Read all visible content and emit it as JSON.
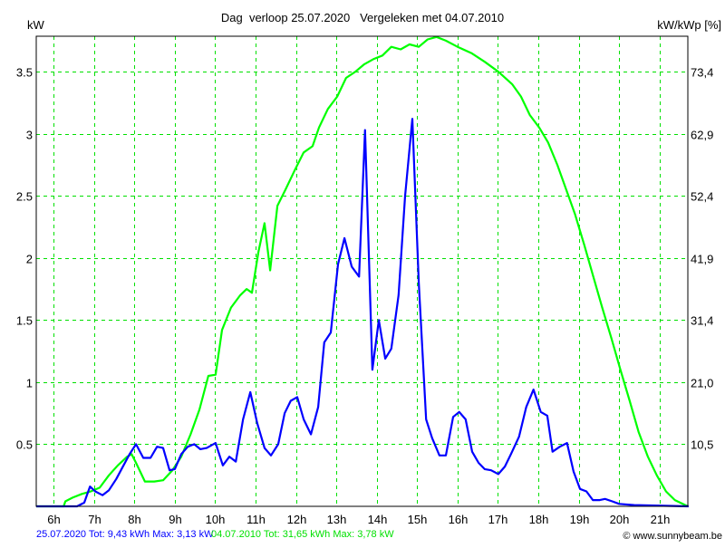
{
  "chart_data": {
    "type": "line",
    "title": "Dag  verloop 25.07.2020   Vergeleken met 04.07.2010",
    "ylabel": "kW",
    "y2label": "kW/kWp [%]",
    "xlim": [
      5.57,
      21.7
    ],
    "ylim": [
      0,
      3.78
    ],
    "grid": true,
    "x_ticks": [
      6,
      7,
      8,
      9,
      10,
      11,
      12,
      13,
      14,
      15,
      16,
      17,
      18,
      19,
      20,
      21
    ],
    "x_tick_labels": [
      "6h",
      "7h",
      "8h",
      "9h",
      "10h",
      "11h",
      "12h",
      "13h",
      "14h",
      "15h",
      "16h",
      "17h",
      "18h",
      "19h",
      "20h",
      "21h"
    ],
    "y_ticks": [
      0.5,
      1,
      1.5,
      2,
      2.5,
      3,
      3.5
    ],
    "y_tick_labels": [
      "0.5",
      "1",
      "1.5",
      "2",
      "2.5",
      "3",
      "3.5"
    ],
    "y2_tick_labels": [
      "10,5",
      "21,0",
      "31,4",
      "41,9",
      "52,4",
      "62,9",
      "73,4"
    ],
    "series": [
      {
        "name": "25.07.2020",
        "color": "#0000ff",
        "x": [
          5.57,
          6.58,
          6.76,
          6.9,
          7.03,
          7.21,
          7.37,
          7.55,
          7.73,
          7.88,
          8.04,
          8.22,
          8.4,
          8.56,
          8.71,
          8.87,
          9.0,
          9.16,
          9.32,
          9.48,
          9.63,
          9.79,
          10.01,
          10.19,
          10.35,
          10.51,
          10.69,
          10.87,
          11.04,
          11.22,
          11.38,
          11.56,
          11.72,
          11.87,
          12.03,
          12.19,
          12.37,
          12.55,
          12.7,
          12.86,
          13.04,
          13.2,
          13.38,
          13.56,
          13.71,
          13.89,
          14.05,
          14.21,
          14.36,
          14.54,
          14.7,
          14.88,
          15.04,
          15.22,
          15.37,
          15.55,
          15.71,
          15.89,
          16.04,
          16.2,
          16.36,
          16.52,
          16.67,
          16.83,
          17.01,
          17.17,
          17.32,
          17.52,
          17.7,
          17.88,
          18.06,
          18.22,
          18.35,
          18.53,
          18.71,
          18.87,
          19.03,
          19.19,
          19.35,
          19.52,
          19.65,
          19.83,
          20.0,
          20.37,
          21.72
        ],
        "y": [
          0,
          0,
          0.03,
          0.16,
          0.12,
          0.09,
          0.13,
          0.22,
          0.33,
          0.42,
          0.5,
          0.39,
          0.39,
          0.48,
          0.47,
          0.29,
          0.3,
          0.42,
          0.48,
          0.5,
          0.46,
          0.47,
          0.51,
          0.33,
          0.4,
          0.36,
          0.7,
          0.92,
          0.67,
          0.47,
          0.41,
          0.5,
          0.75,
          0.85,
          0.88,
          0.7,
          0.58,
          0.8,
          1.32,
          1.4,
          1.95,
          2.16,
          1.93,
          1.85,
          3.03,
          1.1,
          1.5,
          1.19,
          1.27,
          1.7,
          2.5,
          3.12,
          1.8,
          0.7,
          0.55,
          0.41,
          0.41,
          0.72,
          0.76,
          0.7,
          0.44,
          0.35,
          0.3,
          0.29,
          0.26,
          0.32,
          0.42,
          0.56,
          0.8,
          0.94,
          0.76,
          0.73,
          0.44,
          0.48,
          0.51,
          0.28,
          0.14,
          0.12,
          0.05,
          0.05,
          0.06,
          0.04,
          0.02,
          0.01,
          0
        ]
      },
      {
        "name": "04.07.2010",
        "color": "#00ff00",
        "x": [
          5.57,
          6.25,
          6.29,
          6.47,
          6.7,
          6.92,
          7.14,
          7.37,
          7.59,
          7.82,
          7.93,
          8.04,
          8.26,
          8.49,
          8.71,
          8.94,
          9.16,
          9.39,
          9.61,
          9.83,
          10.01,
          10.17,
          10.39,
          10.62,
          10.78,
          10.91,
          11.07,
          11.22,
          11.36,
          11.54,
          11.74,
          11.96,
          12.19,
          12.41,
          12.57,
          12.79,
          13.02,
          13.24,
          13.47,
          13.69,
          13.91,
          14.14,
          14.36,
          14.59,
          14.81,
          15.04,
          15.26,
          15.48,
          15.71,
          16.0,
          16.34,
          16.67,
          17.01,
          17.35,
          17.57,
          17.79,
          18.02,
          18.24,
          18.47,
          18.69,
          18.91,
          19.14,
          19.36,
          19.58,
          19.81,
          20.03,
          20.26,
          20.48,
          20.71,
          20.93,
          21.16,
          21.38,
          21.7
        ],
        "y": [
          0,
          0,
          0.04,
          0.07,
          0.1,
          0.12,
          0.15,
          0.25,
          0.33,
          0.4,
          0.42,
          0.35,
          0.2,
          0.2,
          0.21,
          0.29,
          0.4,
          0.58,
          0.78,
          1.05,
          1.06,
          1.42,
          1.6,
          1.7,
          1.75,
          1.72,
          2.05,
          2.28,
          1.9,
          2.42,
          2.55,
          2.7,
          2.85,
          2.9,
          3.05,
          3.2,
          3.3,
          3.45,
          3.5,
          3.56,
          3.6,
          3.63,
          3.7,
          3.68,
          3.72,
          3.7,
          3.76,
          3.78,
          3.75,
          3.7,
          3.65,
          3.58,
          3.5,
          3.4,
          3.3,
          3.15,
          3.05,
          2.93,
          2.75,
          2.55,
          2.35,
          2.1,
          1.85,
          1.6,
          1.35,
          1.1,
          0.85,
          0.6,
          0.4,
          0.25,
          0.12,
          0.05,
          0
        ]
      }
    ],
    "footer": {
      "s1_text": "25.07.2020 Tot: 9,43 kWh Max: 3,13 kW",
      "s2_text": "04.07.2010 Tot: 31,65 kWh Max: 3,78 kW",
      "copyright": "© www.sunnybeam.be"
    }
  }
}
